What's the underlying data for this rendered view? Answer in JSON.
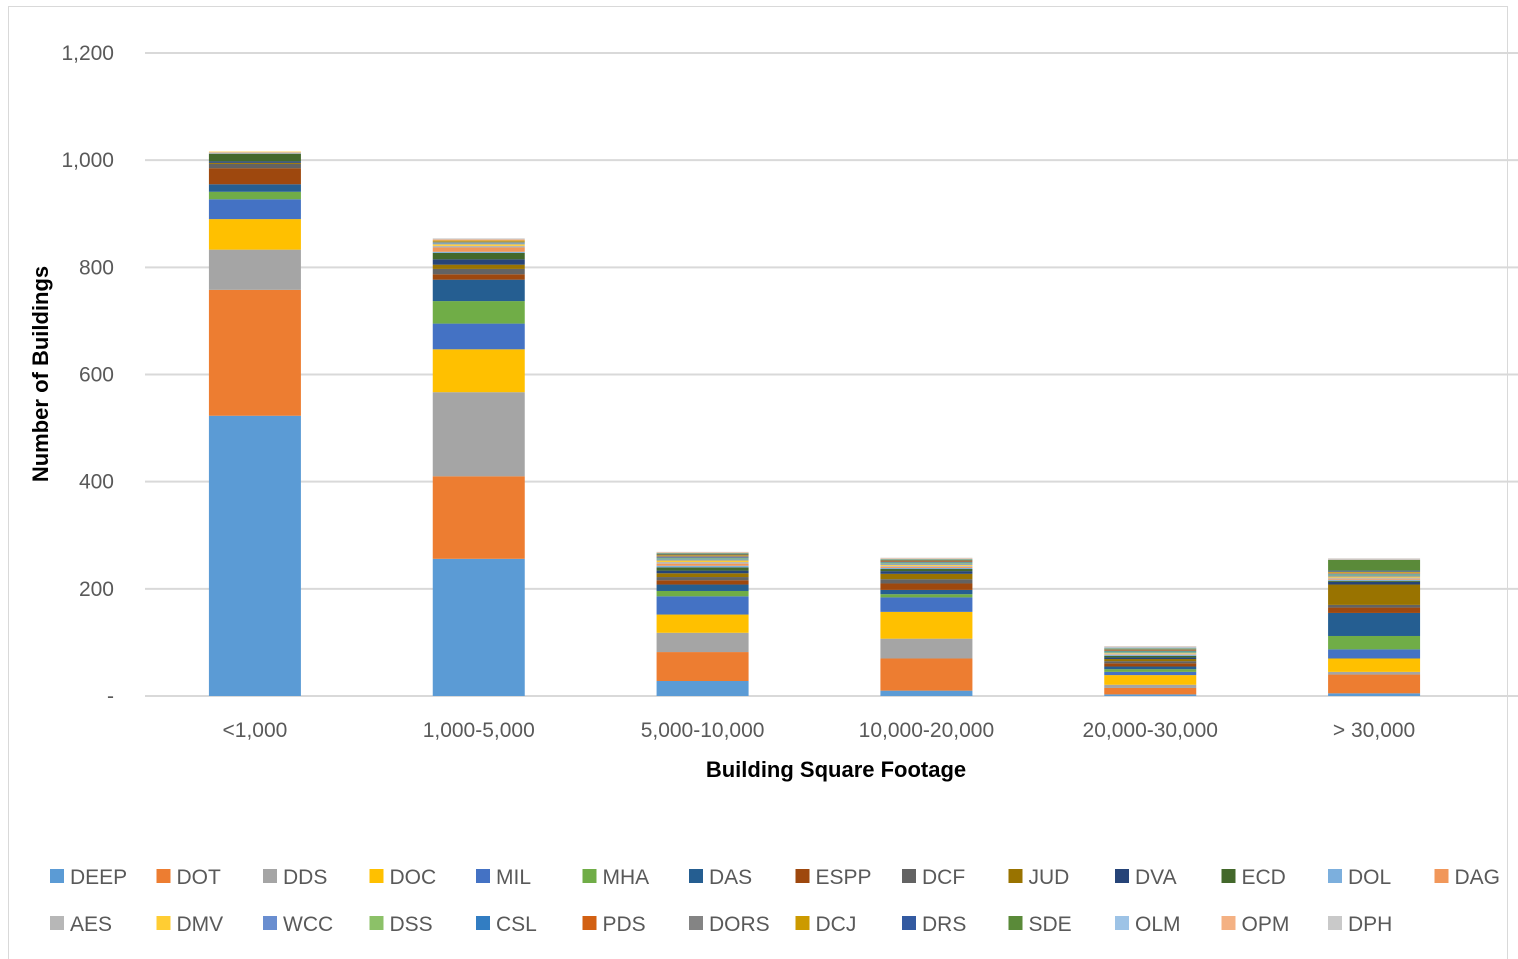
{
  "chart_data": {
    "type": "bar",
    "stacked": true,
    "title": "",
    "xlabel": "Building Square Footage",
    "ylabel": "Number of Buildings",
    "ylim": [
      0,
      1200
    ],
    "y_ticks": [
      0,
      200,
      400,
      600,
      800,
      1000,
      1200
    ],
    "y_tick_labels": [
      "-",
      "200",
      "400",
      "600",
      "800",
      "1,000",
      "1,200"
    ],
    "grid": true,
    "legend_position": "bottom",
    "categories": [
      "<1,000",
      "1,000-5,000",
      "5,000-10,000",
      "10,000-20,000",
      "20,000-30,000",
      "> 30,000"
    ],
    "series": [
      {
        "name": "DEEP",
        "color": "#5b9bd5",
        "values": [
          523,
          256,
          28,
          10,
          3,
          5
        ]
      },
      {
        "name": "DOT",
        "color": "#ed7d31",
        "values": [
          235,
          154,
          54,
          60,
          12,
          35
        ]
      },
      {
        "name": "DDS",
        "color": "#a5a5a5",
        "values": [
          75,
          157,
          36,
          37,
          6,
          5
        ]
      },
      {
        "name": "DOC",
        "color": "#ffc000",
        "values": [
          57,
          80,
          34,
          50,
          18,
          25
        ]
      },
      {
        "name": "MIL",
        "color": "#4472c4",
        "values": [
          37,
          48,
          34,
          27,
          6,
          17
        ]
      },
      {
        "name": "MHA",
        "color": "#70ad47",
        "values": [
          14,
          42,
          10,
          6,
          5,
          25
        ]
      },
      {
        "name": "DAS",
        "color": "#255e91",
        "values": [
          14,
          40,
          12,
          8,
          5,
          43
        ]
      },
      {
        "name": "ESPP",
        "color": "#9e480e",
        "values": [
          30,
          10,
          8,
          12,
          6,
          10
        ]
      },
      {
        "name": "DCF",
        "color": "#636363",
        "values": [
          8,
          10,
          6,
          8,
          4,
          5
        ]
      },
      {
        "name": "JUD",
        "color": "#997300",
        "values": [
          2,
          8,
          7,
          10,
          4,
          38
        ]
      },
      {
        "name": "DVA",
        "color": "#264478",
        "values": [
          3,
          10,
          5,
          5,
          3,
          5
        ]
      },
      {
        "name": "ECD",
        "color": "#43682b",
        "values": [
          14,
          12,
          6,
          4,
          3,
          2
        ]
      },
      {
        "name": "DOL",
        "color": "#7cafdd",
        "values": [
          1,
          2,
          3,
          2,
          2,
          2
        ]
      },
      {
        "name": "DAG",
        "color": "#f1975a",
        "values": [
          1,
          8,
          4,
          2,
          1,
          2
        ]
      },
      {
        "name": "AES",
        "color": "#b7b7b7",
        "values": [
          1,
          3,
          3,
          2,
          1,
          2
        ]
      },
      {
        "name": "DMV",
        "color": "#ffcd33",
        "values": [
          1,
          3,
          3,
          2,
          1,
          2
        ]
      },
      {
        "name": "WCC",
        "color": "#698ed0",
        "values": [
          0,
          2,
          2,
          2,
          1,
          2
        ]
      },
      {
        "name": "DSS",
        "color": "#8cc168",
        "values": [
          0,
          1,
          2,
          2,
          2,
          2
        ]
      },
      {
        "name": "CSL",
        "color": "#327dc2",
        "values": [
          0,
          0,
          2,
          1,
          1,
          1
        ]
      },
      {
        "name": "PDS",
        "color": "#d26012",
        "values": [
          0,
          0,
          1,
          1,
          1,
          1
        ]
      },
      {
        "name": "DORS",
        "color": "#848484",
        "values": [
          0,
          2,
          2,
          1,
          1,
          1
        ]
      },
      {
        "name": "DCJ",
        "color": "#cc9a00",
        "values": [
          0,
          2,
          2,
          1,
          1,
          2
        ]
      },
      {
        "name": "DRS",
        "color": "#335aa1",
        "values": [
          0,
          0,
          1,
          1,
          1,
          2
        ]
      },
      {
        "name": "SDE",
        "color": "#5a8a39",
        "values": [
          0,
          0,
          1,
          1,
          1,
          20
        ]
      },
      {
        "name": "OLM",
        "color": "#9dc3e6",
        "values": [
          0,
          0,
          1,
          1,
          2,
          1
        ]
      },
      {
        "name": "OPM",
        "color": "#f4b183",
        "values": [
          0,
          2,
          1,
          1,
          1,
          1
        ]
      },
      {
        "name": "DPH",
        "color": "#c9c9c9",
        "values": [
          0,
          2,
          1,
          1,
          1,
          1
        ]
      }
    ]
  },
  "styles": {
    "grid_color": "#d9d9d9",
    "tick_color": "#595959"
  }
}
